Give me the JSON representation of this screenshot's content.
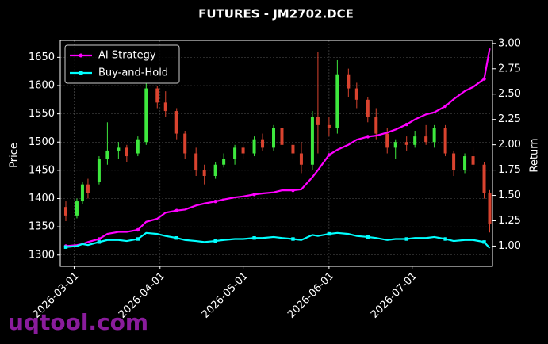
{
  "chart_data": {
    "type": "candlestick",
    "title": "FUTURES - JM2702.DCE",
    "ylabel": "Price",
    "y2label": "Return",
    "watermark": "uqtool.com",
    "x": [
      "2026-02-26",
      "2026-03-02",
      "2026-03-04",
      "2026-03-06",
      "2026-03-10",
      "2026-03-13",
      "2026-03-17",
      "2026-03-20",
      "2026-03-24",
      "2026-03-27",
      "2026-03-31",
      "2026-04-03",
      "2026-04-07",
      "2026-04-10",
      "2026-04-14",
      "2026-04-17",
      "2026-04-21",
      "2026-04-24",
      "2026-04-28",
      "2026-05-01",
      "2026-05-05",
      "2026-05-08",
      "2026-05-12",
      "2026-05-15",
      "2026-05-19",
      "2026-05-22",
      "2026-05-26",
      "2026-05-28",
      "2026-06-01",
      "2026-06-04",
      "2026-06-08",
      "2026-06-11",
      "2026-06-15",
      "2026-06-18",
      "2026-06-22",
      "2026-06-25",
      "2026-06-29",
      "2026-07-02",
      "2026-07-06",
      "2026-07-09",
      "2026-07-13",
      "2026-07-16",
      "2026-07-20",
      "2026-07-23",
      "2026-07-27",
      "2026-07-29"
    ],
    "open": [
      1385,
      1370,
      1395,
      1425,
      1430,
      1470,
      1485,
      1490,
      1480,
      1500,
      1595,
      1570,
      1555,
      1515,
      1480,
      1450,
      1440,
      1460,
      1470,
      1490,
      1480,
      1505,
      1490,
      1525,
      1495,
      1480,
      1460,
      1545,
      1530,
      1525,
      1620,
      1595,
      1575,
      1545,
      1515,
      1490,
      1500,
      1495,
      1510,
      1500,
      1525,
      1480,
      1450,
      1475,
      1460,
      1410
    ],
    "high": [
      1395,
      1400,
      1430,
      1435,
      1475,
      1535,
      1500,
      1495,
      1510,
      1605,
      1600,
      1590,
      1560,
      1520,
      1490,
      1460,
      1465,
      1480,
      1495,
      1500,
      1510,
      1515,
      1530,
      1530,
      1500,
      1500,
      1555,
      1660,
      1545,
      1645,
      1630,
      1605,
      1580,
      1560,
      1525,
      1505,
      1510,
      1520,
      1530,
      1530,
      1530,
      1485,
      1480,
      1490,
      1465,
      1415
    ],
    "low": [
      1360,
      1365,
      1390,
      1400,
      1425,
      1460,
      1470,
      1465,
      1475,
      1495,
      1560,
      1545,
      1505,
      1470,
      1440,
      1425,
      1435,
      1455,
      1460,
      1470,
      1475,
      1485,
      1485,
      1490,
      1470,
      1445,
      1450,
      1480,
      1510,
      1515,
      1580,
      1560,
      1535,
      1505,
      1480,
      1470,
      1485,
      1490,
      1495,
      1490,
      1475,
      1440,
      1445,
      1455,
      1400,
      1340
    ],
    "close": [
      1370,
      1395,
      1425,
      1410,
      1470,
      1485,
      1490,
      1475,
      1505,
      1595,
      1570,
      1555,
      1515,
      1480,
      1450,
      1440,
      1460,
      1470,
      1490,
      1480,
      1505,
      1490,
      1525,
      1495,
      1480,
      1460,
      1545,
      1530,
      1525,
      1620,
      1595,
      1575,
      1545,
      1515,
      1490,
      1500,
      1495,
      1510,
      1500,
      1525,
      1480,
      1450,
      1475,
      1460,
      1410,
      1355
    ],
    "up_color": "#3ee83e",
    "down_color": "#d9432f",
    "series": [
      {
        "name": "AI Strategy",
        "color": "#ff00ff",
        "axis": "y2",
        "values": [
          1.0,
          1.01,
          1.02,
          1.04,
          1.07,
          1.12,
          1.14,
          1.14,
          1.16,
          1.24,
          1.27,
          1.33,
          1.35,
          1.36,
          1.4,
          1.42,
          1.44,
          1.46,
          1.48,
          1.49,
          1.51,
          1.52,
          1.53,
          1.55,
          1.55,
          1.56,
          1.68,
          1.75,
          1.9,
          1.95,
          2.0,
          2.05,
          2.08,
          2.09,
          2.12,
          2.15,
          2.2,
          2.25,
          2.3,
          2.32,
          2.38,
          2.45,
          2.53,
          2.57,
          2.65,
          2.95
        ]
      },
      {
        "name": "Buy-and-Hold",
        "color": "#00ffff",
        "axis": "y2",
        "values": [
          0.99,
          1.0,
          1.02,
          1.01,
          1.04,
          1.06,
          1.06,
          1.05,
          1.07,
          1.13,
          1.12,
          1.1,
          1.08,
          1.06,
          1.05,
          1.04,
          1.05,
          1.06,
          1.07,
          1.07,
          1.08,
          1.08,
          1.09,
          1.08,
          1.07,
          1.06,
          1.11,
          1.1,
          1.12,
          1.13,
          1.12,
          1.1,
          1.09,
          1.08,
          1.06,
          1.07,
          1.07,
          1.08,
          1.08,
          1.09,
          1.07,
          1.05,
          1.06,
          1.06,
          1.04,
          0.98
        ]
      }
    ],
    "xlim": [
      "2026-02-24",
      "2026-07-30"
    ],
    "xticks": [
      "2026-03-01",
      "2026-04-01",
      "2026-05-01",
      "2026-06-01",
      "2026-07-01"
    ],
    "ylim": [
      1280,
      1680
    ],
    "yticks": [
      1300,
      1350,
      1400,
      1450,
      1500,
      1550,
      1600,
      1650
    ],
    "y2lim": [
      0.8,
      3.03
    ],
    "y2ticks": [
      {
        "value": 1,
        "label": "1.00"
      },
      {
        "value": 1.25,
        "label": "1.25"
      },
      {
        "value": 1.5,
        "label": "1.50"
      },
      {
        "value": 1.75,
        "label": "1.75"
      },
      {
        "value": 2,
        "label": "2.00"
      },
      {
        "value": 2.25,
        "label": "2.25"
      },
      {
        "value": 2.5,
        "label": "2.50"
      },
      {
        "value": 2.75,
        "label": "2.75"
      },
      {
        "value": 3,
        "label": "3.00"
      }
    ],
    "grid": true,
    "legend": "upper left"
  }
}
